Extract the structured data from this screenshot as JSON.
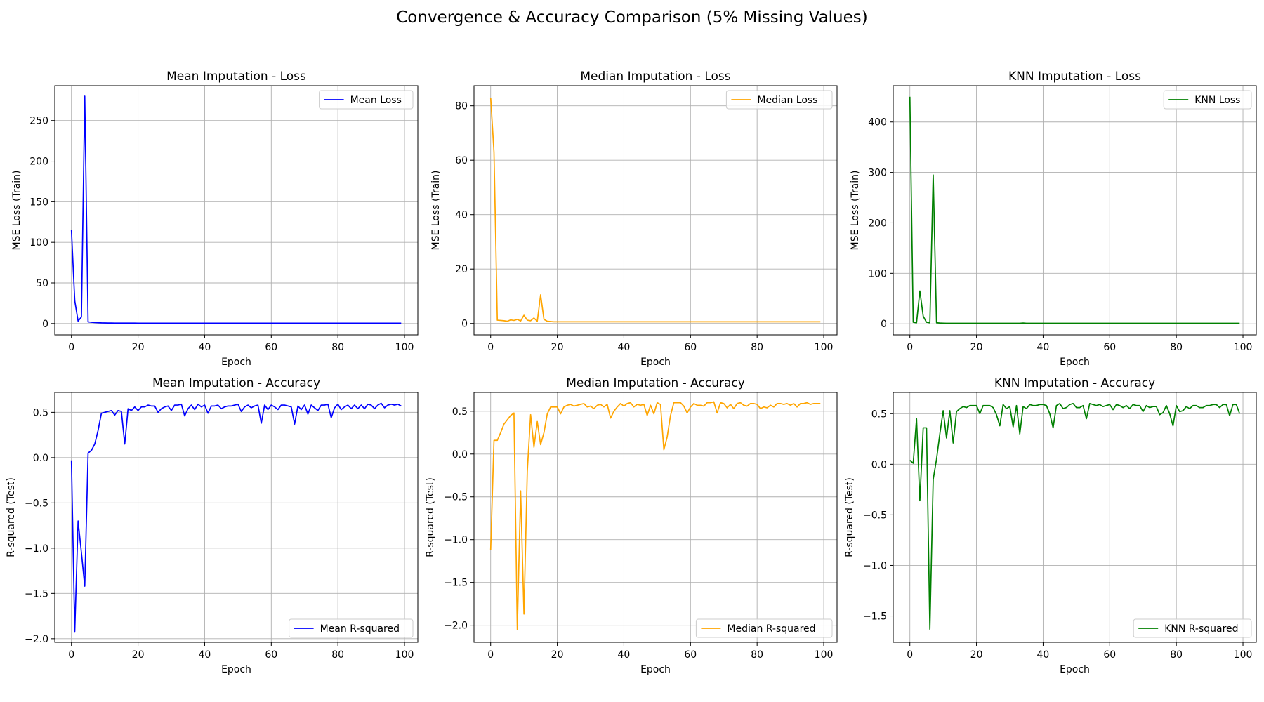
{
  "figure_title": "Convergence & Accuracy Comparison (5% Missing Values)",
  "chart_data": [
    {
      "type": "line",
      "title": "Mean Imputation - Loss",
      "xlabel": "Epoch",
      "ylabel": "MSE Loss (Train)",
      "xlim": [
        -5,
        104
      ],
      "ylim": [
        -14,
        293
      ],
      "xticks": [
        0,
        20,
        40,
        60,
        80,
        100
      ],
      "yticks": [
        0,
        50,
        100,
        150,
        200,
        250
      ],
      "grid": true,
      "legend": "upper right",
      "series": [
        {
          "name": "Mean Loss",
          "color": "#0000ff",
          "y": [
            115,
            28,
            3,
            8,
            280,
            2,
            1.5,
            1.2,
            1,
            0.8,
            0.7,
            0.6,
            0.6,
            0.5,
            0.5,
            0.5,
            0.5,
            0.5,
            0.5,
            0.5,
            0.4,
            0.4,
            0.4,
            0.4,
            0.4,
            0.4,
            0.4,
            0.4,
            0.4,
            0.4,
            0.4,
            0.4,
            0.4,
            0.4,
            0.4,
            0.4,
            0.4,
            0.4,
            0.4,
            0.4,
            0.4,
            0.4,
            0.4,
            0.4,
            0.4,
            0.4,
            0.4,
            0.4,
            0.4,
            0.4,
            0.4,
            0.4,
            0.4,
            0.4,
            0.4,
            0.4,
            0.4,
            0.4,
            0.4,
            0.4,
            0.4,
            0.4,
            0.4,
            0.4,
            0.4,
            0.4,
            0.4,
            0.4,
            0.4,
            0.4,
            0.4,
            0.4,
            0.4,
            0.4,
            0.4,
            0.4,
            0.4,
            0.4,
            0.4,
            0.4,
            0.4,
            0.4,
            0.4,
            0.4,
            0.4,
            0.4,
            0.4,
            0.4,
            0.4,
            0.4,
            0.4,
            0.4,
            0.4,
            0.4,
            0.4,
            0.4,
            0.4,
            0.4,
            0.4,
            0.4
          ]
        }
      ]
    },
    {
      "type": "line",
      "title": "Median Imputation - Loss",
      "xlabel": "Epoch",
      "ylabel": "MSE Loss (Train)",
      "xlim": [
        -5,
        104
      ],
      "ylim": [
        -4.2,
        87.4
      ],
      "xticks": [
        0,
        20,
        40,
        60,
        80,
        100
      ],
      "yticks": [
        0,
        20,
        40,
        60,
        80
      ],
      "grid": true,
      "legend": "upper right",
      "series": [
        {
          "name": "Median Loss",
          "color": "#ffa500",
          "y": [
            83,
            63,
            1.2,
            1.1,
            1,
            0.8,
            1.3,
            1.1,
            1.5,
            0.9,
            3,
            1.2,
            1,
            2,
            0.8,
            10.5,
            1.5,
            0.8,
            0.7,
            0.6,
            0.6,
            0.6,
            0.6,
            0.6,
            0.6,
            0.6,
            0.6,
            0.6,
            0.6,
            0.6,
            0.6,
            0.6,
            0.6,
            0.6,
            0.6,
            0.6,
            0.6,
            0.6,
            0.6,
            0.6,
            0.6,
            0.6,
            0.6,
            0.6,
            0.6,
            0.6,
            0.6,
            0.6,
            0.6,
            0.6,
            0.6,
            0.6,
            0.6,
            0.6,
            0.6,
            0.6,
            0.6,
            0.6,
            0.6,
            0.6,
            0.6,
            0.6,
            0.6,
            0.6,
            0.6,
            0.6,
            0.6,
            0.6,
            0.6,
            0.6,
            0.6,
            0.6,
            0.6,
            0.6,
            0.6,
            0.6,
            0.6,
            0.6,
            0.6,
            0.6,
            0.6,
            0.6,
            0.6,
            0.6,
            0.6,
            0.6,
            0.6,
            0.6,
            0.6,
            0.6,
            0.6,
            0.6,
            0.6,
            0.6,
            0.6,
            0.6,
            0.6,
            0.6,
            0.6,
            0.6
          ]
        }
      ]
    },
    {
      "type": "line",
      "title": "KNN Imputation - Loss",
      "xlabel": "Epoch",
      "ylabel": "MSE Loss (Train)",
      "xlim": [
        -5,
        104
      ],
      "ylim": [
        -22,
        472
      ],
      "xticks": [
        0,
        20,
        40,
        60,
        80,
        100
      ],
      "yticks": [
        0,
        100,
        200,
        300,
        400
      ],
      "grid": true,
      "legend": "upper right",
      "series": [
        {
          "name": "KNN Loss",
          "color": "#008000",
          "y": [
            450,
            3,
            2,
            65,
            15,
            3,
            2,
            295,
            2,
            1.5,
            1.2,
            1,
            1,
            1,
            1,
            1,
            1,
            1,
            1,
            1,
            1,
            1,
            1,
            1,
            1,
            1,
            1,
            1,
            1,
            1,
            1,
            1,
            1,
            1,
            1.5,
            1,
            1,
            1,
            1,
            1,
            1,
            1,
            1,
            1,
            1,
            1,
            1,
            1,
            1,
            1,
            1,
            1,
            1,
            1,
            1,
            1,
            1,
            1,
            1,
            1,
            1,
            1,
            1,
            1,
            1,
            1,
            1,
            1,
            1,
            1,
            1,
            1,
            1,
            1,
            1,
            1,
            1,
            1,
            1,
            1,
            1,
            1,
            1,
            1,
            1,
            1,
            1,
            1,
            1,
            1,
            1,
            1,
            1,
            1,
            1,
            1,
            1,
            1,
            1,
            1
          ]
        }
      ]
    },
    {
      "type": "line",
      "title": "Mean Imputation - Accuracy",
      "xlabel": "Epoch",
      "ylabel": "R-squared (Test)",
      "xlim": [
        -5,
        104
      ],
      "ylim": [
        -2.04,
        0.72
      ],
      "xticks": [
        0,
        20,
        40,
        60,
        80,
        100
      ],
      "yticks": [
        -2.0,
        -1.5,
        -1.0,
        -0.5,
        0.0,
        0.5
      ],
      "grid": true,
      "legend": "lower right",
      "series": [
        {
          "name": "Mean R-squared",
          "color": "#0000ff",
          "y": [
            -0.03,
            -1.92,
            -0.7,
            -1.05,
            -1.42,
            0.05,
            0.08,
            0.15,
            0.3,
            0.49,
            0.5,
            0.51,
            0.52,
            0.47,
            0.52,
            0.51,
            0.15,
            0.54,
            0.52,
            0.56,
            0.52,
            0.56,
            0.56,
            0.58,
            0.57,
            0.57,
            0.5,
            0.54,
            0.56,
            0.57,
            0.52,
            0.58,
            0.58,
            0.59,
            0.46,
            0.54,
            0.58,
            0.53,
            0.59,
            0.56,
            0.58,
            0.49,
            0.57,
            0.57,
            0.58,
            0.54,
            0.56,
            0.57,
            0.57,
            0.58,
            0.59,
            0.51,
            0.56,
            0.58,
            0.55,
            0.57,
            0.58,
            0.38,
            0.58,
            0.53,
            0.58,
            0.56,
            0.53,
            0.58,
            0.58,
            0.57,
            0.56,
            0.37,
            0.57,
            0.53,
            0.58,
            0.48,
            0.58,
            0.55,
            0.52,
            0.58,
            0.58,
            0.59,
            0.44,
            0.55,
            0.59,
            0.53,
            0.56,
            0.58,
            0.54,
            0.58,
            0.54,
            0.58,
            0.54,
            0.59,
            0.58,
            0.54,
            0.58,
            0.6,
            0.55,
            0.58,
            0.59,
            0.58,
            0.59,
            0.57
          ]
        }
      ]
    },
    {
      "type": "line",
      "title": "Median Imputation - Accuracy",
      "xlabel": "Epoch",
      "ylabel": "R-squared (Test)",
      "xlim": [
        -5,
        104
      ],
      "ylim": [
        -2.2,
        0.72
      ],
      "xticks": [
        0,
        20,
        40,
        60,
        80,
        100
      ],
      "yticks": [
        -2.0,
        -1.5,
        -1.0,
        -0.5,
        0.0,
        0.5
      ],
      "grid": true,
      "legend": "lower right",
      "series": [
        {
          "name": "Median R-squared",
          "color": "#ffa500",
          "y": [
            -1.12,
            0.16,
            0.16,
            0.25,
            0.35,
            0.4,
            0.45,
            0.48,
            -2.05,
            -0.43,
            -1.87,
            -0.2,
            0.46,
            0.08,
            0.38,
            0.11,
            0.25,
            0.47,
            0.55,
            0.55,
            0.55,
            0.47,
            0.55,
            0.57,
            0.58,
            0.56,
            0.57,
            0.58,
            0.59,
            0.55,
            0.56,
            0.53,
            0.57,
            0.58,
            0.55,
            0.58,
            0.42,
            0.5,
            0.55,
            0.59,
            0.56,
            0.59,
            0.6,
            0.55,
            0.58,
            0.57,
            0.58,
            0.45,
            0.57,
            0.47,
            0.6,
            0.58,
            0.05,
            0.2,
            0.45,
            0.6,
            0.6,
            0.6,
            0.56,
            0.48,
            0.55,
            0.59,
            0.57,
            0.57,
            0.56,
            0.6,
            0.6,
            0.61,
            0.48,
            0.6,
            0.59,
            0.54,
            0.58,
            0.53,
            0.59,
            0.6,
            0.57,
            0.56,
            0.59,
            0.59,
            0.58,
            0.53,
            0.55,
            0.54,
            0.57,
            0.55,
            0.59,
            0.59,
            0.58,
            0.59,
            0.57,
            0.59,
            0.55,
            0.59,
            0.59,
            0.6,
            0.58,
            0.59,
            0.59,
            0.59
          ]
        }
      ]
    },
    {
      "type": "line",
      "title": "KNN Imputation - Accuracy",
      "xlabel": "Epoch",
      "ylabel": "R-squared (Test)",
      "xlim": [
        -5,
        104
      ],
      "ylim": [
        -1.76,
        0.71
      ],
      "xticks": [
        0,
        20,
        40,
        60,
        80,
        100
      ],
      "yticks": [
        -1.5,
        -1.0,
        -0.5,
        0.0,
        0.5
      ],
      "grid": true,
      "legend": "lower right",
      "series": [
        {
          "name": "KNN R-squared",
          "color": "#008000",
          "y": [
            0.04,
            0.01,
            0.45,
            -0.36,
            0.36,
            0.36,
            -1.63,
            -0.15,
            0.05,
            0.3,
            0.53,
            0.26,
            0.53,
            0.21,
            0.52,
            0.55,
            0.57,
            0.56,
            0.58,
            0.58,
            0.58,
            0.5,
            0.58,
            0.58,
            0.58,
            0.56,
            0.49,
            0.38,
            0.59,
            0.55,
            0.57,
            0.37,
            0.58,
            0.3,
            0.57,
            0.55,
            0.59,
            0.58,
            0.58,
            0.59,
            0.59,
            0.58,
            0.5,
            0.36,
            0.58,
            0.6,
            0.55,
            0.56,
            0.59,
            0.6,
            0.56,
            0.56,
            0.58,
            0.45,
            0.6,
            0.59,
            0.58,
            0.59,
            0.57,
            0.58,
            0.59,
            0.54,
            0.59,
            0.58,
            0.56,
            0.58,
            0.55,
            0.59,
            0.58,
            0.58,
            0.52,
            0.58,
            0.56,
            0.57,
            0.57,
            0.49,
            0.51,
            0.58,
            0.5,
            0.38,
            0.58,
            0.52,
            0.53,
            0.57,
            0.55,
            0.58,
            0.58,
            0.56,
            0.56,
            0.58,
            0.58,
            0.59,
            0.59,
            0.56,
            0.59,
            0.59,
            0.48,
            0.59,
            0.59,
            0.5
          ]
        }
      ]
    }
  ]
}
